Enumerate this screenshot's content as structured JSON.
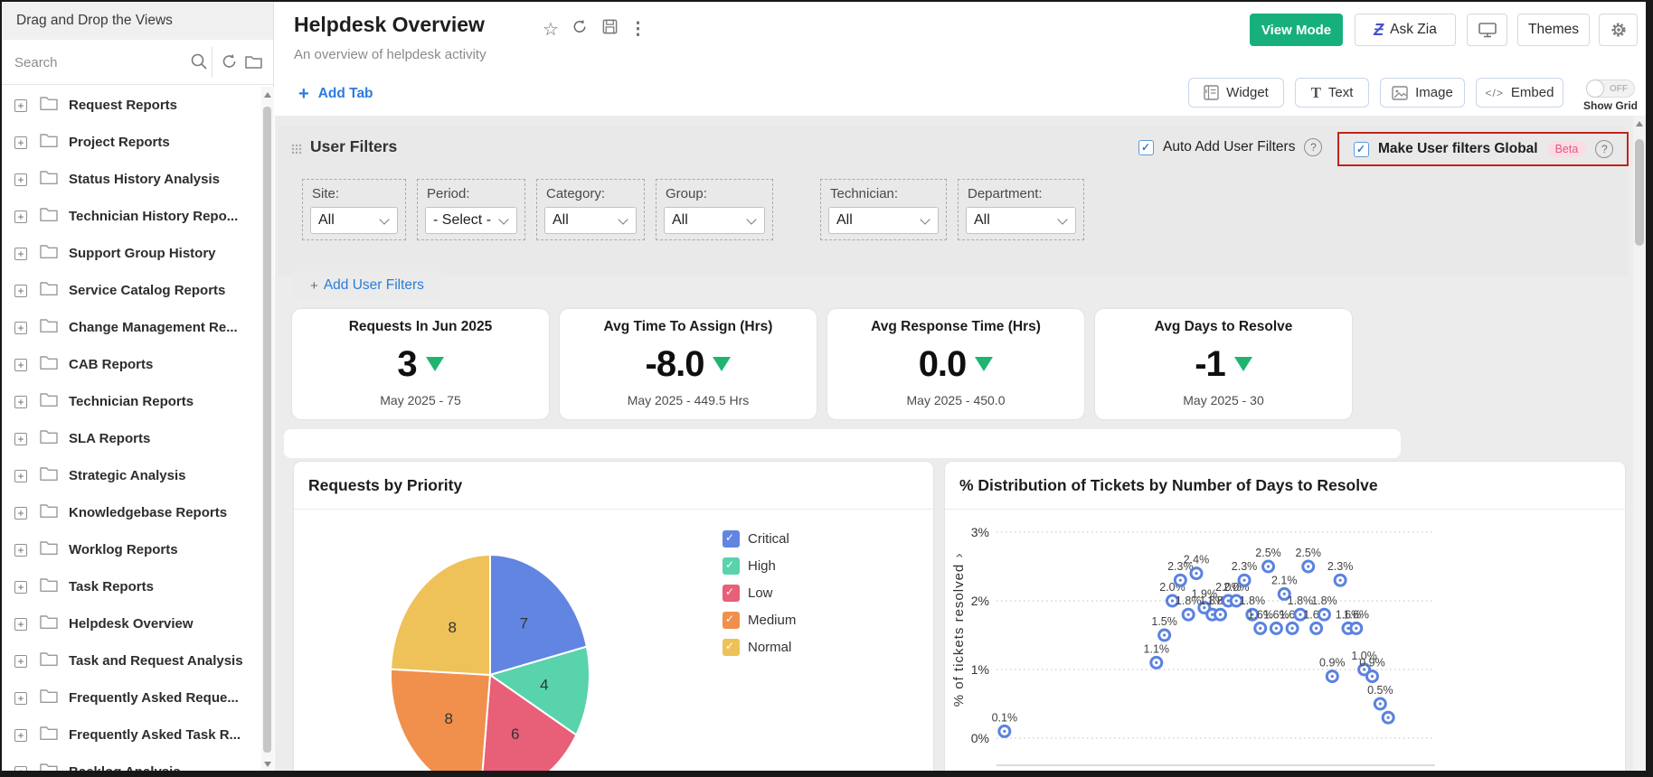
{
  "sidebar": {
    "title": "Drag and Drop the Views",
    "search_placeholder": "Search",
    "items": [
      "Request Reports",
      "Project Reports",
      "Status History Analysis",
      "Technician History Repo...",
      "Support Group History",
      "Service Catalog Reports",
      "Change Management Re...",
      "CAB Reports",
      "Technician Reports",
      "SLA Reports",
      "Strategic Analysis",
      "Knowledgebase Reports",
      "Worklog Reports",
      "Task Reports",
      "Helpdesk Overview",
      "Task and Request Analysis",
      "Frequently Asked Reque...",
      "Frequently Asked Task R...",
      "Backlog Analysis"
    ]
  },
  "header": {
    "title": "Helpdesk Overview",
    "subtitle": "An overview of helpdesk activity",
    "buttons": {
      "view_mode": "View Mode",
      "ask_zia": "Ask Zia",
      "themes": "Themes"
    }
  },
  "toolbar": {
    "add_tab": "Add Tab",
    "widget": "Widget",
    "text": "Text",
    "image": "Image",
    "embed": "Embed",
    "show_grid_label": "Show Grid",
    "show_grid_state": "OFF"
  },
  "user_filters": {
    "title": "User Filters",
    "auto_add_label": "Auto Add User Filters",
    "global_label": "Make User filters Global",
    "beta_badge": "Beta",
    "add_filters_label": "Add User Filters",
    "filters": [
      {
        "label": "Site:",
        "value": "All"
      },
      {
        "label": "Period:",
        "value": "- Select -"
      },
      {
        "label": "Category:",
        "value": "All"
      },
      {
        "label": "Group:",
        "value": "All"
      },
      {
        "label": "Technician:",
        "value": "All"
      },
      {
        "label": "Department:",
        "value": "All"
      }
    ]
  },
  "kpis": [
    {
      "title": "Requests In Jun 2025",
      "value": "3",
      "trend": "down",
      "subtitle": "May 2025 - 75"
    },
    {
      "title": "Avg Time To Assign (Hrs)",
      "value": "-8.0",
      "trend": "down",
      "subtitle": "May 2025 - 449.5 Hrs"
    },
    {
      "title": "Avg Response Time (Hrs)",
      "value": "0.0",
      "trend": "down",
      "subtitle": "May 2025 - 450.0"
    },
    {
      "title": "Avg Days to Resolve",
      "value": "-1",
      "trend": "down",
      "subtitle": "May 2025 - 30"
    }
  ],
  "chart_data": [
    {
      "type": "pie",
      "title": "Requests by Priority",
      "legend_position": "right",
      "legend_checked": true,
      "show_value_labels": true,
      "series": [
        {
          "name": "Critical",
          "value": 7,
          "color": "#6285e2"
        },
        {
          "name": "High",
          "value": 4,
          "color": "#58d3ac"
        },
        {
          "name": "Low",
          "value": 6,
          "color": "#e85f78"
        },
        {
          "name": "Medium",
          "value": 8,
          "color": "#f0904c"
        },
        {
          "name": "Normal",
          "value": 8,
          "color": "#eec159"
        }
      ]
    },
    {
      "type": "scatter",
      "title": "% Distribution of Tickets by Number of Days to Resolve",
      "xlabel": "",
      "ylabel": "% of tickets resolved",
      "ylim": [
        0,
        3
      ],
      "xlim": [
        0,
        50
      ],
      "ytick_labels": [
        "0%",
        "1%",
        "2%",
        "3%"
      ],
      "grid": "dotted-horizontal",
      "marker": "ring",
      "marker_color": "#5b82e0",
      "points": [
        {
          "x": 1,
          "y": 0.1,
          "label": "0.1%"
        },
        {
          "x": 20,
          "y": 1.1,
          "label": "1.1%"
        },
        {
          "x": 21,
          "y": 1.5,
          "label": "1.5%"
        },
        {
          "x": 22,
          "y": 2.0,
          "label": "2.0%"
        },
        {
          "x": 23,
          "y": 2.3,
          "label": "2.3%"
        },
        {
          "x": 24,
          "y": 1.8,
          "label": "1.8%"
        },
        {
          "x": 25,
          "y": 2.4,
          "label": "2.4%"
        },
        {
          "x": 26,
          "y": 1.9,
          "label": "1.9%"
        },
        {
          "x": 27,
          "y": 1.8,
          "label": "1.8%"
        },
        {
          "x": 28,
          "y": 1.8,
          "label": "1.8%"
        },
        {
          "x": 29,
          "y": 2.0,
          "label": "2.0%"
        },
        {
          "x": 30,
          "y": 2.0,
          "label": "2.0%"
        },
        {
          "x": 31,
          "y": 2.3,
          "label": "2.3%"
        },
        {
          "x": 32,
          "y": 1.8,
          "label": "1.8%"
        },
        {
          "x": 33,
          "y": 1.6,
          "label": "1.6%"
        },
        {
          "x": 34,
          "y": 2.5,
          "label": "2.5%"
        },
        {
          "x": 35,
          "y": 1.6,
          "label": "1.6%"
        },
        {
          "x": 36,
          "y": 2.1,
          "label": "2.1%"
        },
        {
          "x": 37,
          "y": 1.6,
          "label": "1.6%"
        },
        {
          "x": 38,
          "y": 1.8,
          "label": "1.8%"
        },
        {
          "x": 39,
          "y": 2.5,
          "label": "2.5%"
        },
        {
          "x": 40,
          "y": 1.6,
          "label": "1.6%"
        },
        {
          "x": 41,
          "y": 1.8,
          "label": "1.8%"
        },
        {
          "x": 42,
          "y": 0.9,
          "label": "0.9%"
        },
        {
          "x": 43,
          "y": 2.3,
          "label": "2.3%"
        },
        {
          "x": 44,
          "y": 1.6,
          "label": "1.6%"
        },
        {
          "x": 45,
          "y": 1.6,
          "label": "1.6%"
        },
        {
          "x": 46,
          "y": 1.0,
          "label": "1.0%"
        },
        {
          "x": 47,
          "y": 0.9,
          "label": "0.9%"
        },
        {
          "x": 48,
          "y": 0.5,
          "label": "0.5%"
        },
        {
          "x": 49,
          "y": 0.3,
          "label": ""
        }
      ]
    }
  ],
  "colors": {
    "accent_green": "#17b07c",
    "link_blue": "#2b7ce0",
    "trend_green": "#1fb571",
    "highlight_red": "#c1241b",
    "beta_pink": "#e25b7e",
    "scatter_blue": "#5b82e0"
  }
}
